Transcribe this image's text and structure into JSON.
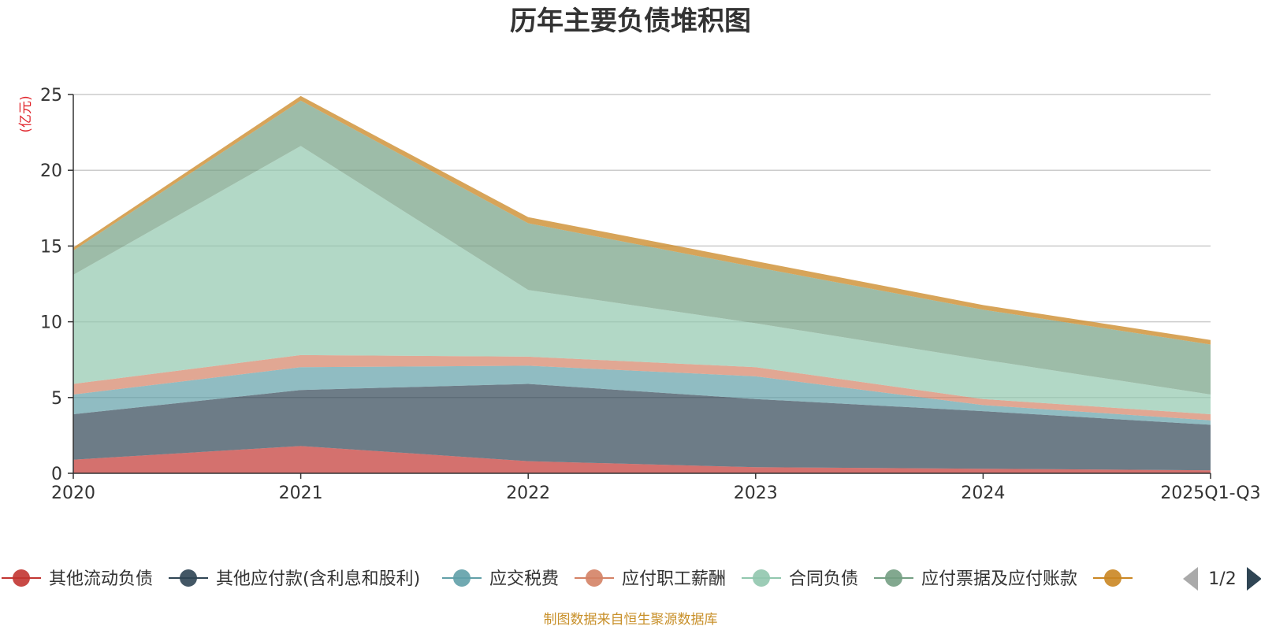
{
  "chart_data": {
    "type": "area",
    "stacked": true,
    "title": "历年主要负债堆积图",
    "ylabel": "(亿元)",
    "xlabel": "",
    "categories": [
      "2020",
      "2021",
      "2022",
      "2023",
      "2024",
      "2025Q1-Q3"
    ],
    "ylim": [
      0,
      25
    ],
    "yticks": [
      0,
      5,
      10,
      15,
      20,
      25
    ],
    "grid": true,
    "series": [
      {
        "name": "其他流动负债",
        "color": "#c23531",
        "values": [
          0.9,
          1.8,
          0.8,
          0.4,
          0.3,
          0.2
        ]
      },
      {
        "name": "其他应付款(含利息和股利)",
        "color": "#2f4554",
        "values": [
          3.0,
          3.7,
          5.1,
          4.5,
          3.8,
          3.0
        ]
      },
      {
        "name": "应交税费",
        "color": "#61a0a8",
        "values": [
          1.3,
          1.5,
          1.2,
          1.5,
          0.4,
          0.3
        ]
      },
      {
        "name": "应付职工薪酬",
        "color": "#d48265",
        "values": [
          0.7,
          0.8,
          0.6,
          0.6,
          0.4,
          0.4
        ]
      },
      {
        "name": "合同负债",
        "color": "#91c7ae",
        "values": [
          7.2,
          13.8,
          4.4,
          2.9,
          2.6,
          1.3
        ]
      },
      {
        "name": "应付票据及应付账款",
        "color": "#749f83",
        "values": [
          1.6,
          3.0,
          4.4,
          3.7,
          3.3,
          3.3
        ]
      },
      {
        "name": "",
        "color": "#ca8622",
        "values": [
          0.2,
          0.3,
          0.4,
          0.4,
          0.3,
          0.3
        ]
      }
    ],
    "legend_position": "bottom"
  },
  "legend_page": "1/2",
  "source_text": "制图数据来自恒生聚源数据库",
  "colors": {
    "ylabel": "#e0242b",
    "source": "#c8902a",
    "axis": "#333333",
    "grid": "#cccccc"
  }
}
